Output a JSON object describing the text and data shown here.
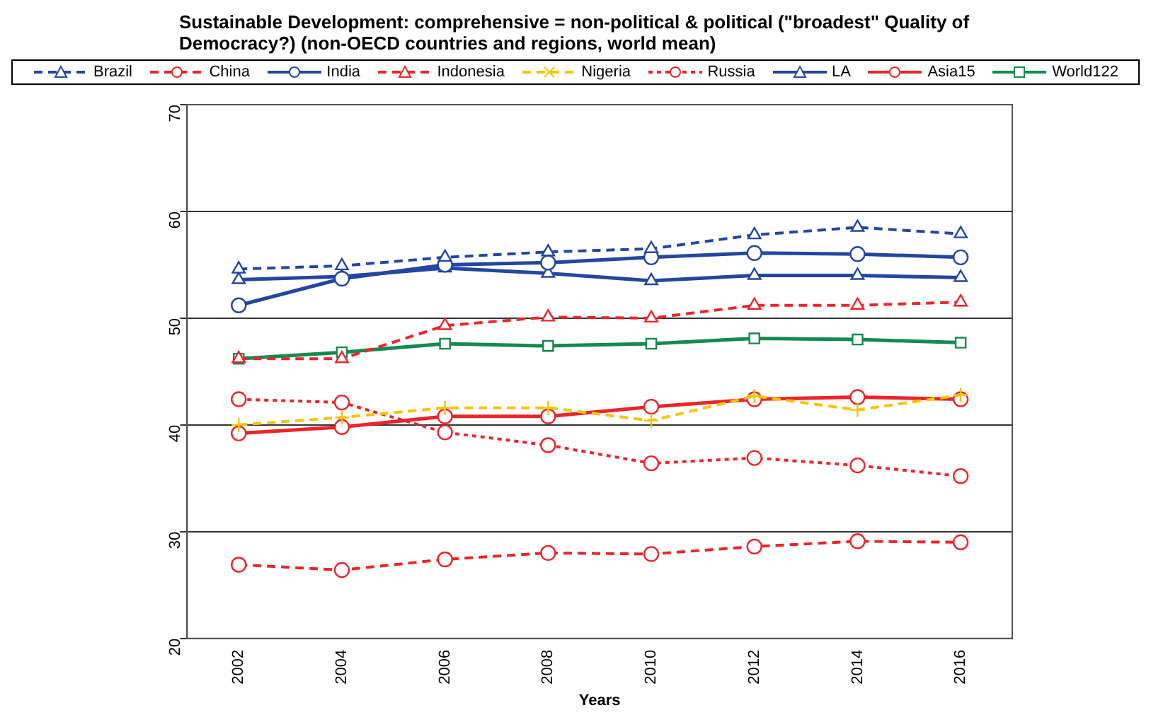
{
  "chart_data": {
    "type": "line",
    "title": "Sustainable Development: comprehensive = non-political & political (\"broadest\" Quality of Democracy?) (non-OECD countries and regions, world mean)",
    "xlabel": "Years",
    "categories": [
      "2002",
      "2004",
      "2006",
      "2008",
      "2010",
      "2012",
      "2014",
      "2016"
    ],
    "ylim": [
      20,
      70
    ],
    "yticks": [
      20,
      30,
      40,
      50,
      60,
      70
    ],
    "grid": "y",
    "legend": "top",
    "series": [
      {
        "name": "Brazil",
        "color": "#2347a0",
        "marker": "triangle",
        "line_style": "dashed",
        "values": [
          54.6,
          54.9,
          55.7,
          56.2,
          56.5,
          57.8,
          58.5,
          57.9
        ]
      },
      {
        "name": "China",
        "color": "#e8262c",
        "marker": "circle",
        "line_style": "dashed",
        "values": [
          26.9,
          26.4,
          27.4,
          28.0,
          27.9,
          28.6,
          29.1,
          29.0
        ]
      },
      {
        "name": "India",
        "color": "#2347a0",
        "marker": "circle",
        "line_style": "solid",
        "values": [
          51.2,
          53.7,
          55.0,
          55.2,
          55.7,
          56.1,
          56.0,
          55.7
        ]
      },
      {
        "name": "Indonesia",
        "color": "#e8262c",
        "marker": "triangle",
        "line_style": "dashed",
        "values": [
          46.2,
          46.2,
          49.3,
          50.1,
          50.0,
          51.2,
          51.2,
          51.5
        ]
      },
      {
        "name": "Nigeria",
        "color": "#f5c400",
        "marker": "cross",
        "line_style": "dashed",
        "values": [
          40.0,
          40.7,
          41.6,
          41.6,
          40.4,
          42.7,
          41.4,
          42.8
        ]
      },
      {
        "name": "Russia",
        "color": "#e8262c",
        "marker": "circle",
        "line_style": "dotted",
        "values": [
          42.4,
          42.1,
          39.3,
          38.1,
          36.4,
          36.9,
          36.2,
          35.2
        ]
      },
      {
        "name": "LA",
        "color": "#2347a0",
        "marker": "triangle",
        "line_style": "solid",
        "values": [
          53.6,
          53.9,
          54.7,
          54.2,
          53.5,
          54.0,
          54.0,
          53.8
        ]
      },
      {
        "name": "Asia15",
        "color": "#e8262c",
        "marker": "circle",
        "line_style": "solid",
        "values": [
          39.2,
          39.8,
          40.8,
          40.8,
          41.7,
          42.4,
          42.6,
          42.4
        ]
      },
      {
        "name": "World122",
        "color": "#138a4f",
        "marker": "square",
        "line_style": "solid",
        "values": [
          46.2,
          46.8,
          47.6,
          47.4,
          47.6,
          48.1,
          48.0,
          47.7
        ]
      }
    ]
  }
}
